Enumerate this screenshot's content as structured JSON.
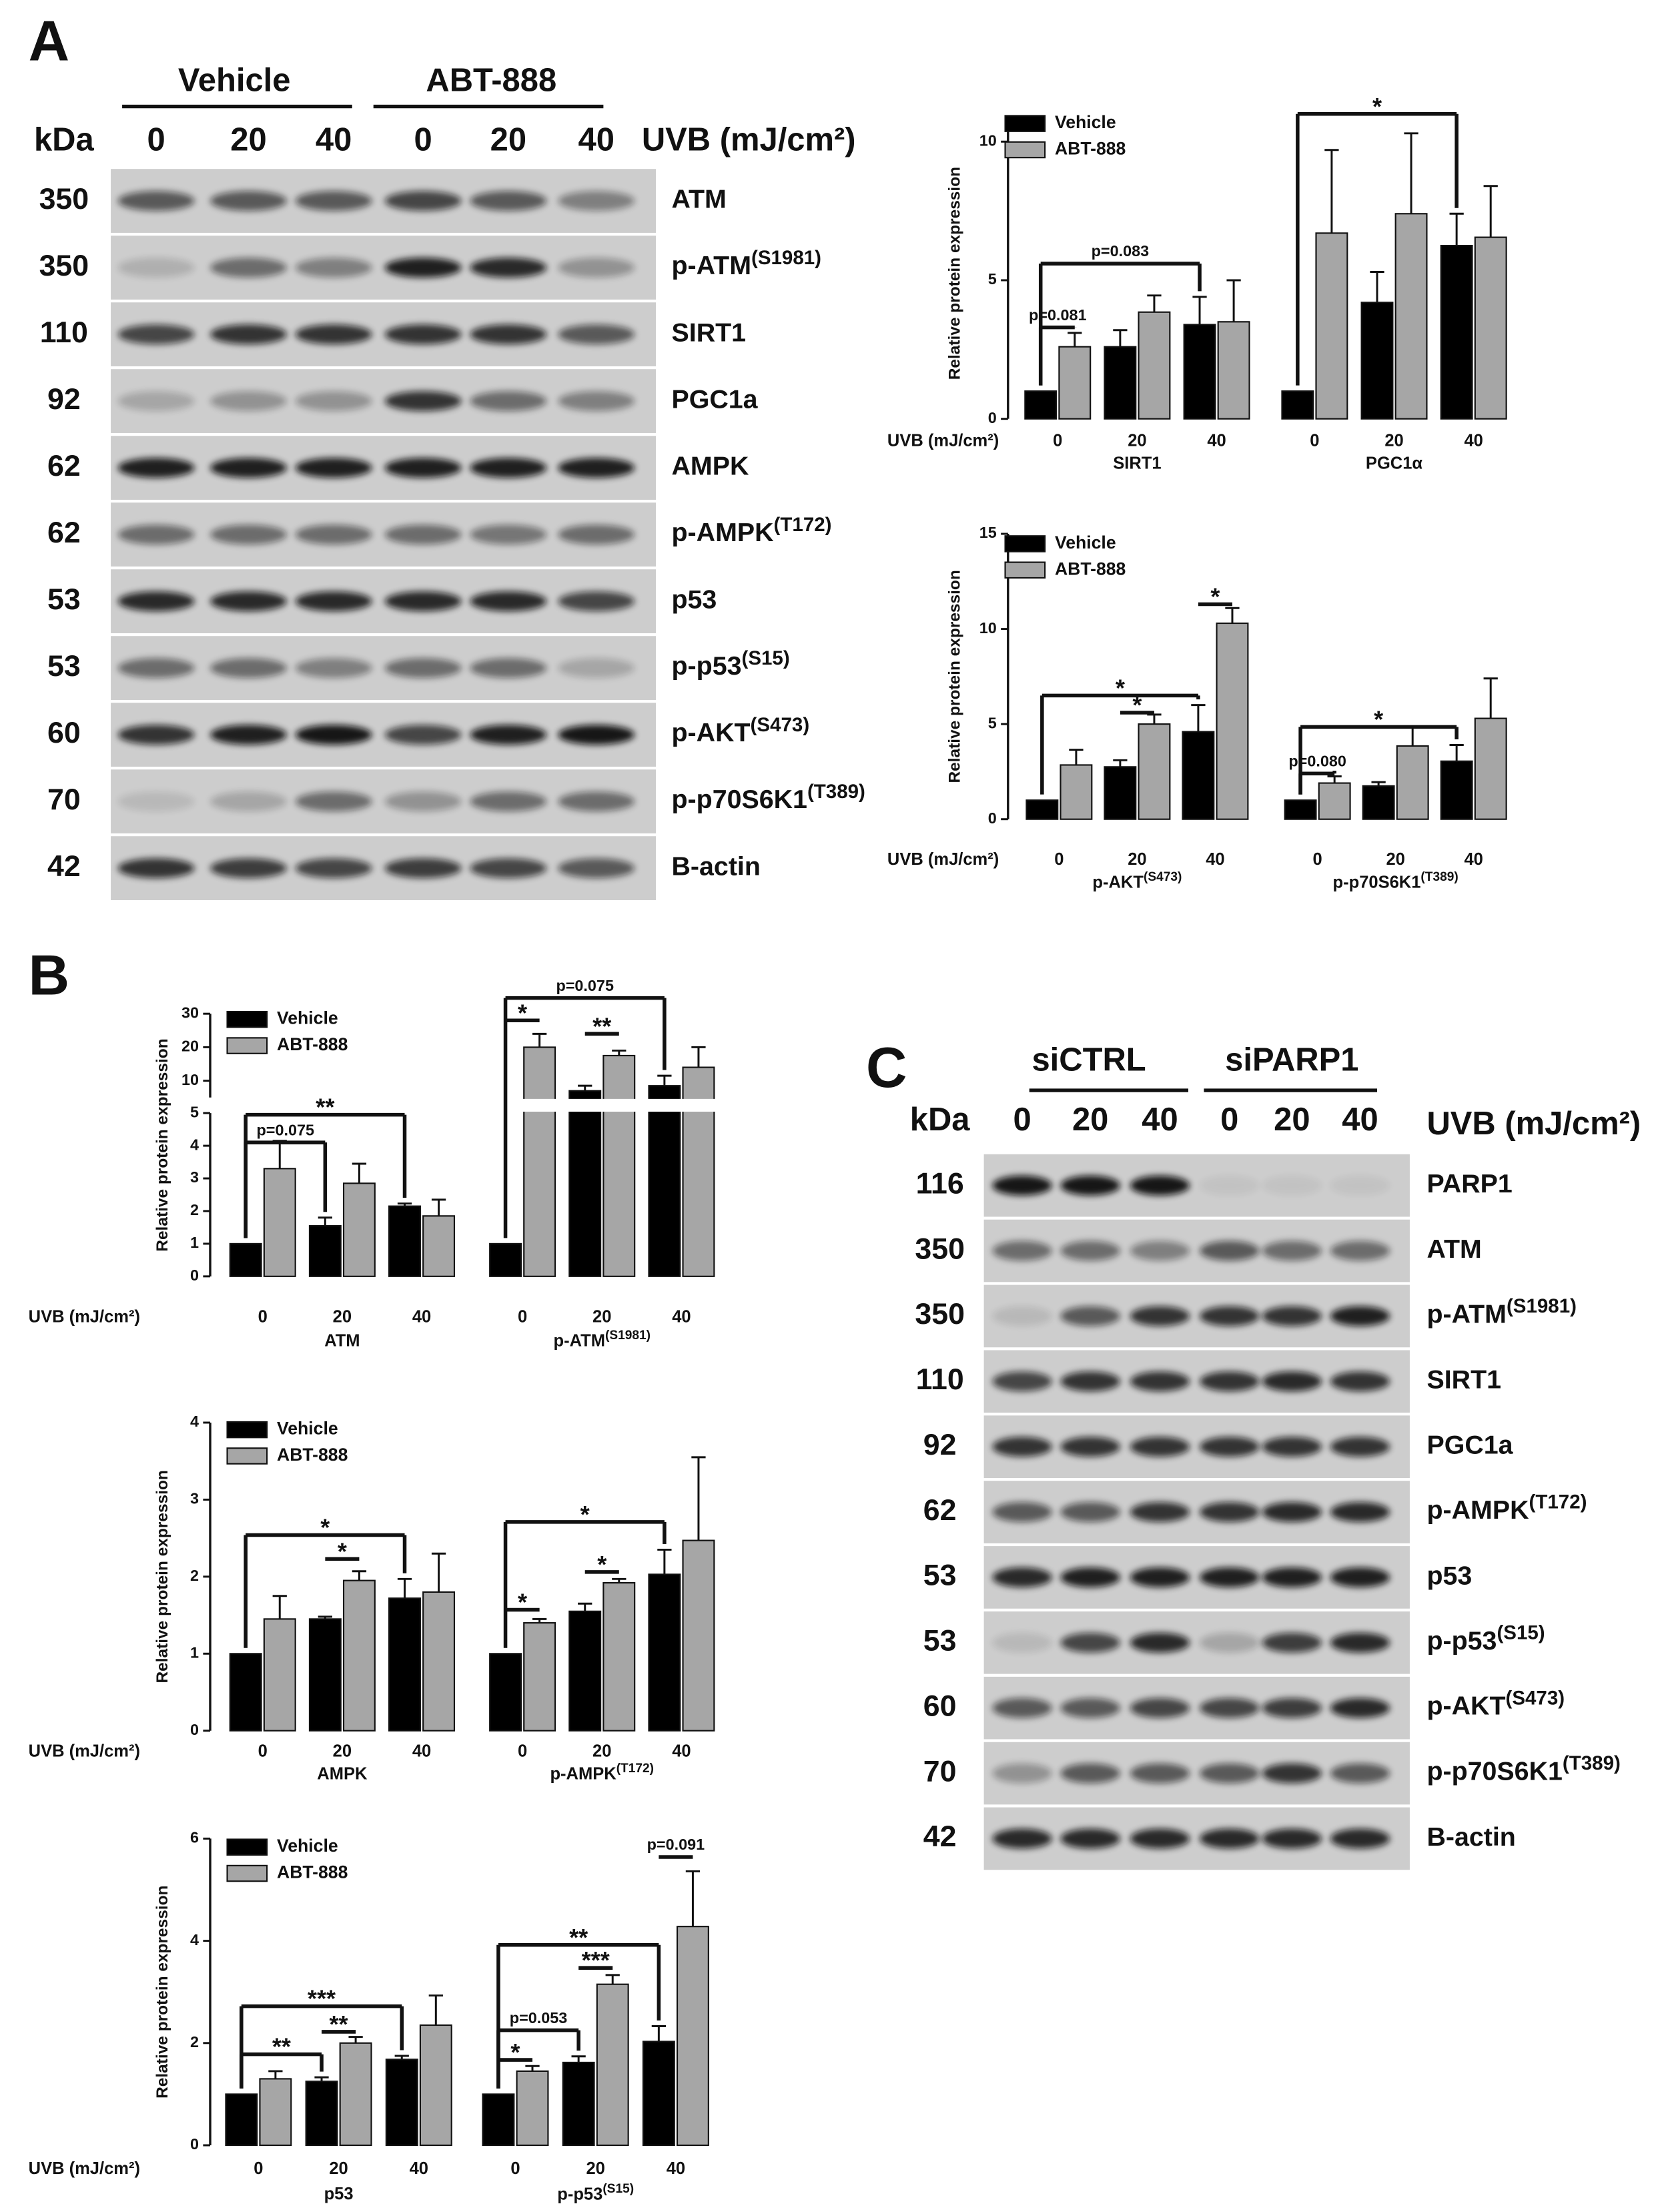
{
  "figure": {
    "panel_labels": [
      "A",
      "B",
      "C"
    ],
    "blot_a": {
      "conditions": [
        "Vehicle",
        "ABT-888"
      ],
      "lanes": [
        "0",
        "20",
        "40",
        "0",
        "20",
        "40"
      ],
      "kda_label": "kDa",
      "uvb_label": "UVB (mJ/cm²)",
      "rows": [
        {
          "kda": "350",
          "protein": "ATM"
        },
        {
          "kda": "350",
          "protein": "p-ATM(S1981)"
        },
        {
          "kda": "110",
          "protein": "SIRT1"
        },
        {
          "kda": "92",
          "protein": "PGC1a"
        },
        {
          "kda": "62",
          "protein": "AMPK"
        },
        {
          "kda": "62",
          "protein": "p-AMPK(T172)"
        },
        {
          "kda": "53",
          "protein": "p53"
        },
        {
          "kda": "53",
          "protein": "p-p53(S15)"
        },
        {
          "kda": "60",
          "protein": "p-AKT(S473)"
        },
        {
          "kda": "70",
          "protein": "p-p70S6K1(T389)"
        },
        {
          "kda": "42",
          "protein": "B-actin"
        }
      ]
    },
    "blot_c": {
      "conditions": [
        "siCTRL",
        "siPARP1"
      ],
      "lanes": [
        "0",
        "20",
        "40",
        "0",
        "20",
        "40"
      ],
      "kda_label": "kDa",
      "uvb_label": "UVB (mJ/cm²)",
      "rows": [
        {
          "kda": "116",
          "protein": "PARP1"
        },
        {
          "kda": "350",
          "protein": "ATM"
        },
        {
          "kda": "350",
          "protein": "p-ATM(S1981)"
        },
        {
          "kda": "110",
          "protein": "SIRT1"
        },
        {
          "kda": "92",
          "protein": "PGC1a"
        },
        {
          "kda": "62",
          "protein": "p-AMPK(T172)"
        },
        {
          "kda": "53",
          "protein": "p53"
        },
        {
          "kda": "53",
          "protein": "p-p53(S15)"
        },
        {
          "kda": "60",
          "protein": "p-AKT(S473)"
        },
        {
          "kda": "70",
          "protein": "p-p70S6K1(T389)"
        },
        {
          "kda": "42",
          "protein": "B-actin"
        }
      ]
    }
  },
  "chart_data": [
    {
      "type": "bar",
      "ylabel": "Relative protein expression",
      "xlabel": "UVB (mJ/cm²)",
      "categories": [
        "0",
        "20",
        "40",
        "0",
        "20",
        "40"
      ],
      "groups": [
        "SIRT1",
        "PGC1α"
      ],
      "series": [
        {
          "name": "Vehicle",
          "color": "#000000",
          "values": [
            1.0,
            2.6,
            3.4,
            1.0,
            4.2,
            6.25
          ],
          "errors": [
            null,
            0.6,
            1.0,
            null,
            1.1,
            1.15
          ]
        },
        {
          "name": "ABT-888",
          "color": "#a6a6a6",
          "values": [
            2.6,
            3.85,
            3.5,
            6.7,
            7.4,
            6.55
          ],
          "errors": [
            0.5,
            0.6,
            1.5,
            3.0,
            2.9,
            1.85
          ]
        }
      ],
      "ylim": [
        0,
        10.5
      ],
      "yticks": [
        0,
        5,
        10
      ],
      "annotations": [
        "p=0.081",
        "p=0.083",
        "*"
      ]
    },
    {
      "type": "bar",
      "ylabel": "Relative protein expression",
      "xlabel": "UVB (mJ/cm²)",
      "categories": [
        "0",
        "20",
        "40",
        "0",
        "20",
        "40"
      ],
      "groups": [
        "p-AKT(S473)",
        "p-p70S6K1(T389)"
      ],
      "series": [
        {
          "name": "Vehicle",
          "color": "#000000",
          "values": [
            1.0,
            2.75,
            4.6,
            1.0,
            1.75,
            3.05
          ],
          "errors": [
            null,
            0.35,
            1.4,
            null,
            0.2,
            0.85
          ]
        },
        {
          "name": "ABT-888",
          "color": "#a6a6a6",
          "values": [
            2.85,
            5.0,
            10.3,
            1.9,
            3.85,
            5.3
          ],
          "errors": [
            0.8,
            0.5,
            0.8,
            0.35,
            1.0,
            2.1
          ]
        }
      ],
      "ylim": [
        0,
        15
      ],
      "yticks": [
        0,
        5,
        10,
        15
      ],
      "annotations": [
        "*",
        "*",
        "*",
        "p=0.080",
        "*"
      ]
    },
    {
      "type": "bar",
      "ylabel": "Relative protein expression",
      "xlabel": "UVB (mJ/cm²)",
      "categories": [
        "0",
        "20",
        "40",
        "0",
        "20",
        "40"
      ],
      "groups": [
        "ATM",
        "p-ATM(S1981)"
      ],
      "series": [
        {
          "name": "Vehicle",
          "color": "#000000",
          "values": [
            1.0,
            1.55,
            2.15,
            1.0,
            7,
            8.5
          ],
          "errors": [
            null,
            0.25,
            0.08,
            null,
            1.5,
            3
          ]
        },
        {
          "name": "ABT-888",
          "color": "#a6a6a6",
          "values": [
            3.3,
            2.85,
            1.85,
            20,
            17.5,
            14
          ],
          "errors": [
            0.85,
            0.6,
            0.5,
            4,
            1.5,
            6
          ]
        }
      ],
      "ylim": [
        0,
        30
      ],
      "y_break": 5,
      "yticks": [
        0,
        1,
        2,
        3,
        4,
        5,
        10,
        20,
        30
      ],
      "annotations": [
        "p=0.075",
        "**",
        "*",
        "**",
        "p=0.075"
      ]
    },
    {
      "type": "bar",
      "ylabel": "Relative protein expression",
      "xlabel": "UVB (mJ/cm²)",
      "categories": [
        "0",
        "20",
        "40",
        "0",
        "20",
        "40"
      ],
      "groups": [
        "AMPK",
        "p-AMPK(T172)"
      ],
      "series": [
        {
          "name": "Vehicle",
          "color": "#000000",
          "values": [
            1.0,
            1.45,
            1.72,
            1.0,
            1.55,
            2.03
          ],
          "errors": [
            null,
            0.03,
            0.25,
            null,
            0.1,
            0.32
          ]
        },
        {
          "name": "ABT-888",
          "color": "#a6a6a6",
          "values": [
            1.45,
            1.95,
            1.8,
            1.4,
            1.92,
            2.47
          ],
          "errors": [
            0.3,
            0.12,
            0.5,
            0.05,
            0.05,
            1.08
          ]
        }
      ],
      "ylim": [
        0,
        4
      ],
      "yticks": [
        0,
        1,
        2,
        3,
        4
      ],
      "annotations": [
        "*",
        "*",
        "*",
        "*",
        "*"
      ]
    },
    {
      "type": "bar",
      "ylabel": "Relative protein expression",
      "xlabel": "UVB (mJ/cm²)",
      "categories": [
        "0",
        "20",
        "40",
        "0",
        "20",
        "40"
      ],
      "groups": [
        "p53",
        "p-p53(S15)"
      ],
      "series": [
        {
          "name": "Vehicle",
          "color": "#000000",
          "values": [
            1.0,
            1.25,
            1.68,
            1.0,
            1.62,
            2.03
          ],
          "errors": [
            null,
            0.08,
            0.07,
            null,
            0.12,
            0.3
          ]
        },
        {
          "name": "ABT-888",
          "color": "#a6a6a6",
          "values": [
            1.3,
            2.0,
            2.35,
            1.45,
            3.15,
            4.28
          ],
          "errors": [
            0.15,
            0.12,
            0.58,
            0.1,
            0.18,
            1.08
          ]
        }
      ],
      "ylim": [
        0,
        6
      ],
      "yticks": [
        0,
        2,
        4,
        6
      ],
      "annotations": [
        "**",
        "**",
        "***",
        "*",
        "p=0.053",
        "***",
        "**",
        "p=0.091"
      ]
    }
  ]
}
